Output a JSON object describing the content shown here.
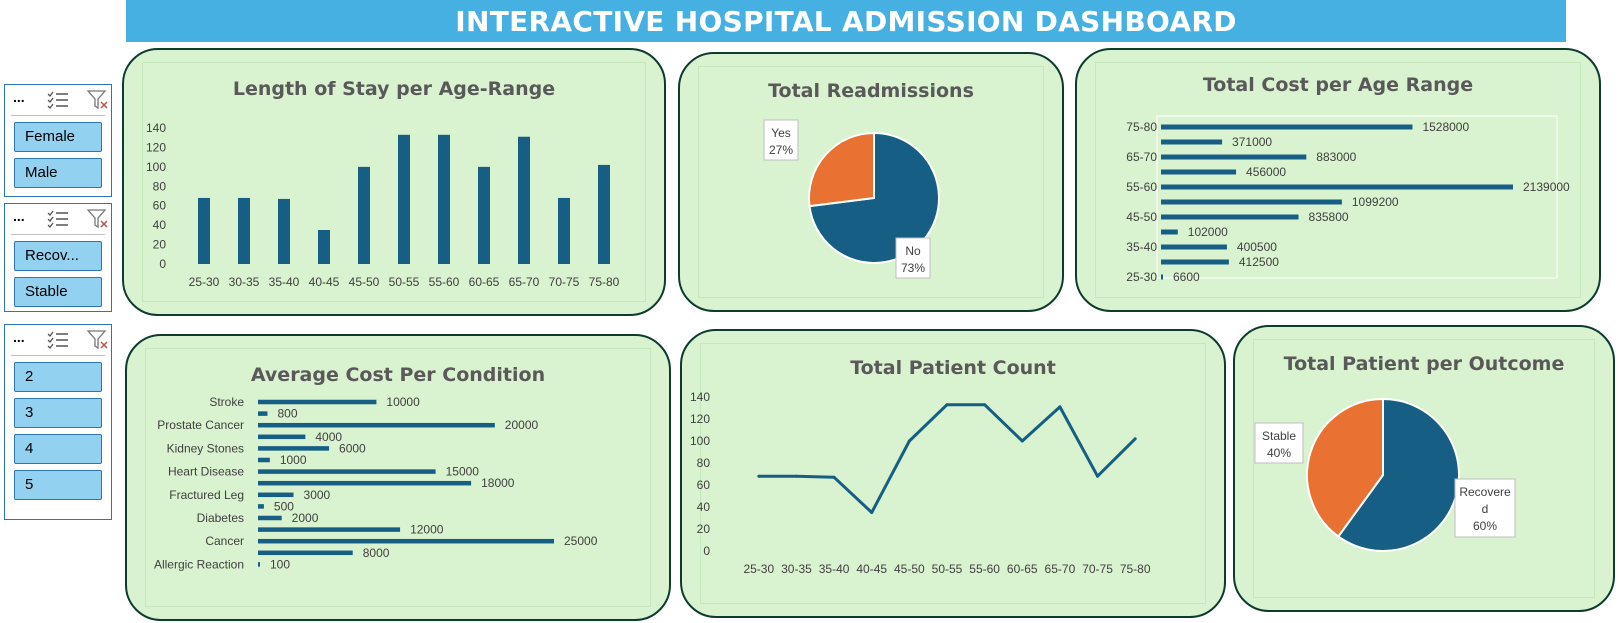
{
  "dashboard_title": "INTERACTIVE HOSPITAL ADMISSION DASHBOARD",
  "colors": {
    "primary": "#165e83",
    "secondary": "#e97132",
    "card_bg": "#d9f2d0",
    "title_bar": "#45b0e1",
    "slicer_item": "#92d1ef"
  },
  "slicers": [
    {
      "items": [
        "Female",
        "Male"
      ]
    },
    {
      "items": [
        "Recov...",
        "Stable"
      ]
    },
    {
      "items": [
        "2",
        "3",
        "4",
        "5"
      ]
    }
  ],
  "slicer_icons": {
    "more": "...",
    "multiselect": "multi-select-icon",
    "clear": "clear-filter-icon"
  },
  "cards": {
    "los": {
      "title": "Length of Stay per Age-Range"
    },
    "readmissions": {
      "title": "Total Readmissions"
    },
    "cost_age": {
      "title": "Total Cost per Age Range"
    },
    "avg_cost": {
      "title": "Average Cost Per Condition"
    },
    "patient_count": {
      "title": "Total Patient Count"
    },
    "outcome": {
      "title": "Total Patient per Outcome"
    }
  },
  "chart_data": [
    {
      "id": "los",
      "type": "bar",
      "title": "Length of Stay per Age-Range",
      "categories": [
        "25-30",
        "30-35",
        "35-40",
        "40-45",
        "45-50",
        "50-55",
        "55-60",
        "60-65",
        "65-70",
        "70-75",
        "75-80"
      ],
      "values": [
        68,
        68,
        67,
        35,
        100,
        133,
        133,
        100,
        131,
        68,
        102
      ],
      "ylim": [
        0,
        140
      ],
      "yticks": [
        0,
        20,
        40,
        60,
        80,
        100,
        120,
        140
      ]
    },
    {
      "id": "readmissions",
      "type": "pie",
      "title": "Total Readmissions",
      "slices": [
        {
          "label": "No",
          "pct": "73%",
          "value": 73
        },
        {
          "label": "Yes",
          "pct": "27%",
          "value": 27
        }
      ]
    },
    {
      "id": "cost_age",
      "type": "bar",
      "orientation": "horizontal",
      "title": "Total Cost per Age Range",
      "tick_labels": [
        "75-80",
        "65-70",
        "55-60",
        "45-50",
        "35-40",
        "25-30"
      ],
      "values": [
        1528000,
        371000,
        883000,
        456000,
        2139000,
        1099200,
        835800,
        102000,
        400500,
        412500,
        6600
      ],
      "data_labels": [
        "1528000",
        "371000",
        "883000",
        "456000",
        "2139000",
        "1099200",
        "835800",
        "102000",
        "400500",
        "412500",
        "6600"
      ],
      "xlim": [
        0,
        2139000
      ]
    },
    {
      "id": "avg_cost",
      "type": "bar",
      "orientation": "horizontal",
      "title": "Average Cost Per Condition",
      "tick_labels": [
        "Stroke",
        "Prostate Cancer",
        "Kidney Stones",
        "Heart Disease",
        "Fractured Leg",
        "Diabetes",
        "Cancer",
        "Allergic Reaction"
      ],
      "values": [
        10000,
        800,
        20000,
        4000,
        6000,
        1000,
        15000,
        18000,
        3000,
        500,
        2000,
        12000,
        25000,
        8000,
        100
      ],
      "data_labels": [
        "10000",
        "800",
        "20000",
        "4000",
        "6000",
        "1000",
        "15000",
        "18000",
        "3000",
        "500",
        "2000",
        "12000",
        "25000",
        "8000",
        "100"
      ],
      "xlim": [
        0,
        25000
      ]
    },
    {
      "id": "patient_count",
      "type": "line",
      "title": "Total Patient Count",
      "categories": [
        "25-30",
        "30-35",
        "35-40",
        "40-45",
        "45-50",
        "50-55",
        "55-60",
        "60-65",
        "65-70",
        "70-75",
        "75-80"
      ],
      "values": [
        68,
        68,
        67,
        35,
        100,
        133,
        133,
        100,
        131,
        68,
        102
      ],
      "ylim": [
        0,
        140
      ],
      "yticks": [
        0,
        20,
        40,
        60,
        80,
        100,
        120,
        140
      ]
    },
    {
      "id": "outcome",
      "type": "pie",
      "title": "Total Patient per Outcome",
      "slices": [
        {
          "label": "Recovere\nd",
          "pct": "60%",
          "value": 60
        },
        {
          "label": "Stable",
          "pct": "40%",
          "value": 40
        }
      ]
    }
  ]
}
